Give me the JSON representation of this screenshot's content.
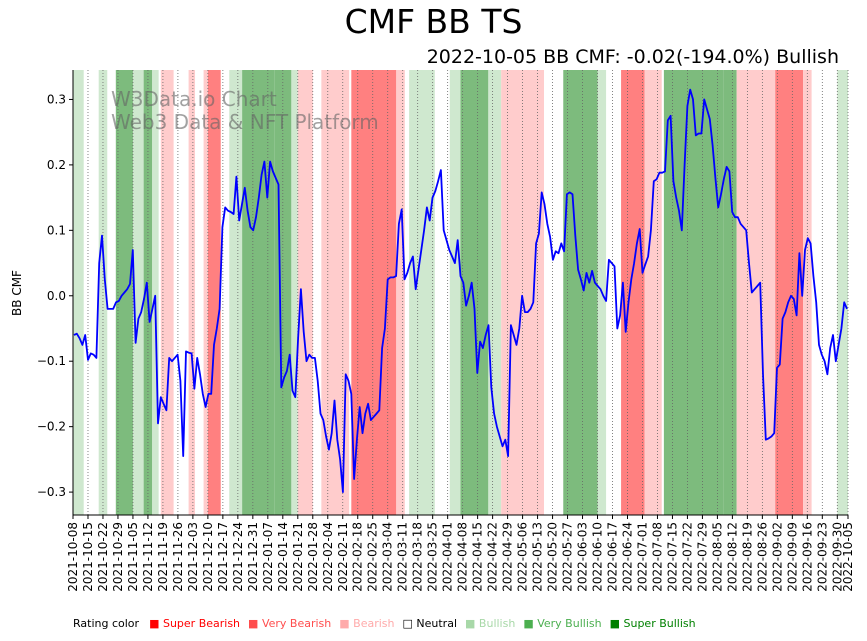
{
  "title": "CMF BB TS",
  "subtitle": "2022-10-05 BB CMF: -0.02(-194.0%) Bullish",
  "watermark": {
    "line1": "W3Data.io Chart",
    "line2": "Web3 Data & NFT Platform"
  },
  "legend": {
    "title": "Rating color",
    "items": [
      {
        "label": "Super Bearish",
        "marker": "■",
        "color": "#ff0000"
      },
      {
        "label": "Very Bearish",
        "marker": "■",
        "color": "#ff4d4d"
      },
      {
        "label": "Bearish",
        "marker": "■",
        "color": "#ffaaaa"
      },
      {
        "label": "Neutral",
        "marker": "□",
        "color": "#000000"
      },
      {
        "label": "Bullish",
        "marker": "■",
        "color": "#a8d8a8"
      },
      {
        "label": "Very Bullish",
        "marker": "■",
        "color": "#4caf50"
      },
      {
        "label": "Super Bullish",
        "marker": "■",
        "color": "#008000"
      }
    ]
  },
  "colors": {
    "line": "#0000ff",
    "bullish": "#cfe8cf",
    "very_bullish": "#7dbb7d",
    "bearish": "#ffcccc",
    "very_bearish": "#ff8080"
  },
  "chart_data": {
    "type": "line",
    "title": "CMF BB TS",
    "ylabel": "BB CMF",
    "xlabel": "",
    "x_start": "2021-10-08",
    "x_end": "2022-10-05",
    "ylim": [
      -0.335,
      0.345
    ],
    "yticks": [
      -0.3,
      -0.2,
      -0.1,
      0.0,
      0.1,
      0.2,
      0.3
    ],
    "ytick_labels": [
      "−0.3",
      "−0.2",
      "−0.1",
      "0.0",
      "0.1",
      "0.2",
      "0.3"
    ],
    "xticks": [
      "2021-10-08",
      "2021-10-15",
      "2021-10-22",
      "2021-10-29",
      "2021-11-05",
      "2021-11-12",
      "2021-11-19",
      "2021-11-26",
      "2021-12-03",
      "2021-12-10",
      "2021-12-17",
      "2021-12-24",
      "2021-12-31",
      "2022-01-07",
      "2022-01-14",
      "2022-01-21",
      "2022-01-28",
      "2022-02-04",
      "2022-02-11",
      "2022-02-18",
      "2022-02-25",
      "2022-03-04",
      "2022-03-11",
      "2022-03-18",
      "2022-03-25",
      "2022-04-01",
      "2022-04-08",
      "2022-04-15",
      "2022-04-22",
      "2022-04-29",
      "2022-05-06",
      "2022-05-13",
      "2022-05-20",
      "2022-05-27",
      "2022-06-03",
      "2022-06-10",
      "2022-06-17",
      "2022-06-24",
      "2022-07-01",
      "2022-07-08",
      "2022-07-15",
      "2022-07-22",
      "2022-07-29",
      "2022-08-05",
      "2022-08-12",
      "2022-08-19",
      "2022-08-26",
      "2022-09-02",
      "2022-09-09",
      "2022-09-16",
      "2022-09-23",
      "2022-09-30",
      "2022-10-05"
    ],
    "series": [
      {
        "name": "BB CMF",
        "values": [
          -0.06,
          -0.058,
          -0.065,
          -0.075,
          -0.06,
          -0.098,
          -0.088,
          -0.09,
          -0.095,
          0.05,
          0.092,
          0.025,
          -0.02,
          -0.02,
          -0.02,
          -0.01,
          -0.008,
          0.0,
          0.005,
          0.01,
          0.018,
          0.07,
          -0.072,
          -0.035,
          -0.025,
          -0.005,
          0.02,
          -0.04,
          -0.02,
          0.0,
          -0.195,
          -0.155,
          -0.165,
          -0.175,
          -0.095,
          -0.1,
          -0.095,
          -0.09,
          -0.13,
          -0.245,
          -0.085,
          -0.087,
          -0.088,
          -0.142,
          -0.095,
          -0.12,
          -0.15,
          -0.17,
          -0.15,
          -0.15,
          -0.075,
          -0.05,
          -0.02,
          0.105,
          0.135,
          0.13,
          0.128,
          0.125,
          0.182,
          0.115,
          0.14,
          0.165,
          0.13,
          0.105,
          0.1,
          0.12,
          0.15,
          0.185,
          0.205,
          0.15,
          0.205,
          0.19,
          0.18,
          0.17,
          -0.14,
          -0.125,
          -0.115,
          -0.09,
          -0.145,
          -0.155,
          -0.065,
          0.01,
          -0.055,
          -0.1,
          -0.09,
          -0.095,
          -0.095,
          -0.13,
          -0.18,
          -0.19,
          -0.215,
          -0.235,
          -0.21,
          -0.16,
          -0.22,
          -0.25,
          -0.3,
          -0.12,
          -0.13,
          -0.15,
          -0.28,
          -0.22,
          -0.17,
          -0.21,
          -0.18,
          -0.165,
          -0.19,
          -0.185,
          -0.18,
          -0.175,
          -0.08,
          -0.05,
          0.025,
          0.028,
          0.028,
          0.03,
          0.11,
          0.132,
          0.025,
          0.035,
          0.05,
          0.06,
          0.01,
          0.04,
          0.07,
          0.1,
          0.135,
          0.115,
          0.15,
          0.16,
          0.175,
          0.192,
          0.1,
          0.085,
          0.07,
          0.06,
          0.05,
          0.085,
          0.03,
          0.02,
          -0.015,
          0.0,
          0.02,
          -0.02,
          -0.118,
          -0.07,
          -0.08,
          -0.06,
          -0.045,
          -0.14,
          -0.18,
          -0.2,
          -0.215,
          -0.23,
          -0.22,
          -0.245,
          -0.045,
          -0.06,
          -0.075,
          -0.05,
          0.0,
          -0.025,
          -0.025,
          -0.02,
          -0.01,
          0.08,
          0.095,
          0.158,
          0.14,
          0.11,
          0.09,
          0.055,
          0.068,
          0.065,
          0.08,
          0.068,
          0.155,
          0.158,
          0.155,
          0.092,
          0.04,
          0.025,
          0.008,
          0.035,
          0.02,
          0.038,
          0.02,
          0.015,
          0.01,
          0.0,
          -0.008,
          0.055,
          0.05,
          0.045,
          -0.05,
          -0.03,
          0.02,
          -0.055,
          -0.01,
          0.025,
          0.05,
          0.08,
          0.102,
          0.035,
          0.048,
          0.06,
          0.1,
          0.175,
          0.178,
          0.188,
          0.188,
          0.19,
          0.268,
          0.275,
          0.175,
          0.15,
          0.13,
          0.1,
          0.2,
          0.29,
          0.315,
          0.3,
          0.245,
          0.248,
          0.248,
          0.3,
          0.285,
          0.27,
          0.23,
          0.18,
          0.135,
          0.155,
          0.178,
          0.197,
          0.19,
          0.128,
          0.12,
          0.12,
          0.11,
          0.105,
          0.1,
          0.05,
          0.005,
          0.01,
          0.015,
          0.02,
          -0.12,
          -0.22,
          -0.218,
          -0.215,
          -0.21,
          -0.11,
          -0.105,
          -0.035,
          -0.025,
          -0.01,
          0.0,
          -0.005,
          -0.03,
          0.065,
          0.0,
          0.07,
          0.088,
          0.08,
          0.03,
          -0.01,
          -0.075,
          -0.09,
          -0.1,
          -0.12,
          -0.08,
          -0.06,
          -0.1,
          -0.075,
          -0.05,
          -0.01,
          -0.02
        ]
      }
    ],
    "rating_bands": [
      {
        "start": "2021-10-08",
        "end": "2021-10-13",
        "rating": "Bullish"
      },
      {
        "start": "2021-10-20",
        "end": "2021-10-24",
        "rating": "Bullish"
      },
      {
        "start": "2021-10-28",
        "end": "2021-11-05",
        "rating": "Very Bullish"
      },
      {
        "start": "2021-11-05",
        "end": "2021-11-10",
        "rating": "Bullish"
      },
      {
        "start": "2021-11-10",
        "end": "2021-11-14",
        "rating": "Very Bullish"
      },
      {
        "start": "2021-11-14",
        "end": "2021-11-17",
        "rating": "Bullish"
      },
      {
        "start": "2021-11-18",
        "end": "2021-11-24",
        "rating": "Bearish"
      },
      {
        "start": "2021-12-01",
        "end": "2021-12-04",
        "rating": "Bearish"
      },
      {
        "start": "2021-12-08",
        "end": "2021-12-10",
        "rating": "Bearish"
      },
      {
        "start": "2021-12-10",
        "end": "2021-12-16",
        "rating": "Very Bearish"
      },
      {
        "start": "2021-12-20",
        "end": "2021-12-26",
        "rating": "Bullish"
      },
      {
        "start": "2021-12-26",
        "end": "2022-01-10",
        "rating": "Very Bullish"
      },
      {
        "start": "2022-01-10",
        "end": "2022-01-18",
        "rating": "Very Bullish"
      },
      {
        "start": "2022-01-18",
        "end": "2022-01-21",
        "rating": "Bullish"
      },
      {
        "start": "2022-01-21",
        "end": "2022-01-28",
        "rating": "Bearish"
      },
      {
        "start": "2022-02-01",
        "end": "2022-02-14",
        "rating": "Bearish"
      },
      {
        "start": "2022-02-15",
        "end": "2022-03-08",
        "rating": "Very Bearish"
      },
      {
        "start": "2022-03-08",
        "end": "2022-03-12",
        "rating": "Bearish"
      },
      {
        "start": "2022-03-14",
        "end": "2022-03-26",
        "rating": "Bullish"
      },
      {
        "start": "2022-04-02",
        "end": "2022-04-07",
        "rating": "Bullish"
      },
      {
        "start": "2022-04-07",
        "end": "2022-04-20",
        "rating": "Very Bullish"
      },
      {
        "start": "2022-04-20",
        "end": "2022-04-26",
        "rating": "Bullish"
      },
      {
        "start": "2022-04-26",
        "end": "2022-05-05",
        "rating": "Bearish"
      },
      {
        "start": "2022-05-05",
        "end": "2022-05-16",
        "rating": "Bearish"
      },
      {
        "start": "2022-05-25",
        "end": "2022-06-10",
        "rating": "Very Bullish"
      },
      {
        "start": "2022-06-10",
        "end": "2022-06-14",
        "rating": "Bullish"
      },
      {
        "start": "2022-06-21",
        "end": "2022-07-02",
        "rating": "Very Bearish"
      },
      {
        "start": "2022-07-02",
        "end": "2022-07-10",
        "rating": "Bearish"
      },
      {
        "start": "2022-07-11",
        "end": "2022-08-08",
        "rating": "Very Bullish"
      },
      {
        "start": "2022-08-08",
        "end": "2022-08-14",
        "rating": "Very Bullish"
      },
      {
        "start": "2022-08-14",
        "end": "2022-09-01",
        "rating": "Bearish"
      },
      {
        "start": "2022-09-01",
        "end": "2022-09-14",
        "rating": "Very Bearish"
      },
      {
        "start": "2022-09-14",
        "end": "2022-09-18",
        "rating": "Bearish"
      },
      {
        "start": "2022-09-30",
        "end": "2022-10-05",
        "rating": "Bullish"
      }
    ]
  }
}
